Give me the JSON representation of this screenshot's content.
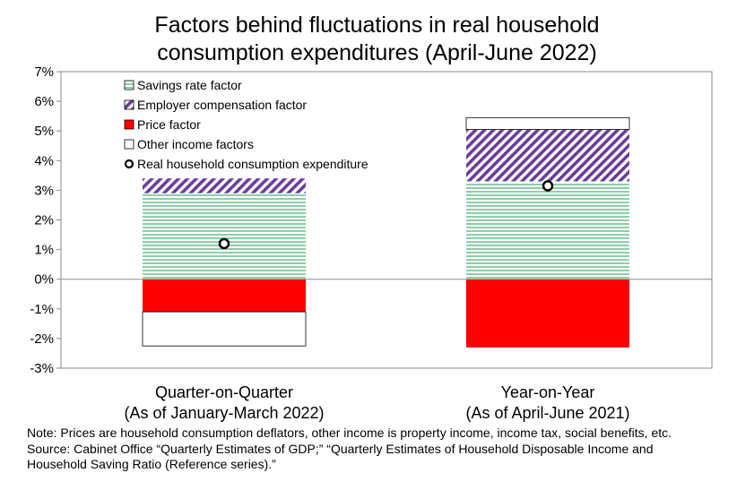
{
  "chart_data": {
    "type": "bar",
    "stacked": true,
    "title_lines": [
      "Factors behind fluctuations in real household",
      "consumption expenditures (April-June 2022)"
    ],
    "categories": [
      {
        "lines": [
          "Quarter-on-Quarter",
          "(As of January-March 2022)"
        ]
      },
      {
        "lines": [
          "Year-on-Year",
          "(As of April-June 2021)"
        ]
      }
    ],
    "series": [
      {
        "name": "Savings rate factor",
        "pattern": "horizontal-lines",
        "color": "#1e9e50",
        "values": [
          2.9,
          3.3
        ]
      },
      {
        "name": "Employer compensation factor",
        "pattern": "diagonal-lines",
        "color": "#6a3d9a",
        "values": [
          0.5,
          1.75
        ]
      },
      {
        "name": "Price factor",
        "pattern": "solid",
        "color": "#ff0000",
        "values": [
          -1.1,
          -2.3
        ]
      },
      {
        "name": "Other income factors",
        "pattern": "solid",
        "color": "#ffffff",
        "values": [
          -1.15,
          0.4
        ]
      }
    ],
    "markers": {
      "name": "Real household consumption expenditure",
      "values": [
        1.2,
        3.15
      ]
    },
    "ylim": [
      -3,
      7
    ],
    "yticks": [
      "7%",
      "6%",
      "5%",
      "4%",
      "3%",
      "2%",
      "1%",
      "0%",
      "-1%",
      "-2%",
      "-3%"
    ],
    "legend_position": "top-left",
    "grid": false
  },
  "notes": [
    "Note: Prices are household consumption deflators, other income is property income, income tax, social benefits, etc.",
    "Source: Cabinet Office “Quarterly Estimates of GDP;” “Quarterly Estimates of Household Disposable Income and",
    "Household Saving Ratio (Reference series).”"
  ]
}
